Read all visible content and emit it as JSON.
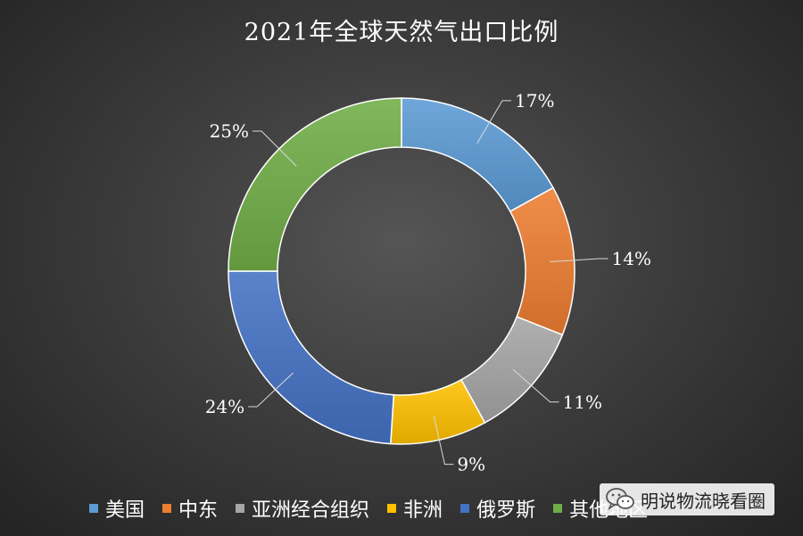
{
  "chart_data": {
    "type": "pie",
    "title": "2021年全球天然气出口比例",
    "categories": [
      "美国",
      "中东",
      "亚洲经合组织",
      "非洲",
      "俄罗斯",
      "其他地区"
    ],
    "values": [
      17,
      14,
      11,
      9,
      24,
      25
    ],
    "data_labels": [
      "17%",
      "14%",
      "11%",
      "9%",
      "24%",
      "25%"
    ],
    "colors": [
      "#5b9bd5",
      "#ed7d31",
      "#a5a5a5",
      "#ffc000",
      "#4472c4",
      "#70ad47"
    ],
    "legend_position": "bottom",
    "donut": true
  },
  "watermark": {
    "icon": "wechat-icon",
    "text": "明说物流晓看圈"
  }
}
